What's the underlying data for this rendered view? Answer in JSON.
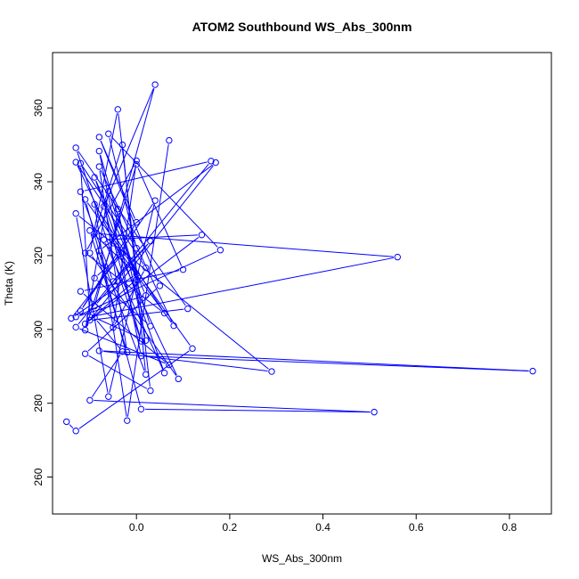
{
  "chart_data": {
    "type": "line",
    "title": "ATOM2 Southbound WS_Abs_300nm",
    "xlabel": "WS_Abs_300nm",
    "ylabel": "Theta (K)",
    "xlim": [
      -0.18,
      0.89
    ],
    "ylim": [
      250,
      375
    ],
    "xticks": [
      0.0,
      0.2,
      0.4,
      0.6,
      0.8
    ],
    "xtick_labels": [
      "0.0",
      "0.2",
      "0.4",
      "0.6",
      "0.8"
    ],
    "yticks": [
      260,
      280,
      300,
      320,
      340,
      360
    ],
    "ytick_labels": [
      "260",
      "280",
      "300",
      "320",
      "340",
      "360"
    ],
    "grid": false,
    "series": [
      {
        "color": "#0000ff",
        "markers": "open-circle",
        "points": [
          [
            -0.15,
            275.0
          ],
          [
            -0.13,
            272.5
          ],
          [
            0.12,
            294.8
          ],
          [
            -0.11,
            335.2
          ],
          [
            0.01,
            278.4
          ],
          [
            0.51,
            277.6
          ],
          [
            -0.1,
            280.8
          ],
          [
            -0.03,
            294.0
          ],
          [
            -0.09,
            303.2
          ],
          [
            0.02,
            297.0
          ],
          [
            -0.04,
            332.6
          ],
          [
            -0.05,
            323.4
          ],
          [
            0.08,
            301.0
          ],
          [
            -0.08,
            344.1
          ],
          [
            -0.02,
            293.8
          ],
          [
            -0.1,
            326.8
          ],
          [
            0.0,
            315.0
          ],
          [
            -0.14,
            303.0
          ],
          [
            -0.03,
            320.6
          ],
          [
            -0.09,
            313.9
          ],
          [
            0.03,
            300.9
          ],
          [
            -0.06,
            337.4
          ],
          [
            -0.11,
            299.8
          ],
          [
            0.0,
            344.7
          ],
          [
            0.1,
            316.2
          ],
          [
            -0.12,
            310.3
          ],
          [
            0.07,
            290.4
          ],
          [
            -0.13,
            300.6
          ],
          [
            0.16,
            345.6
          ],
          [
            -0.12,
            337.3
          ],
          [
            -0.05,
            313.0
          ],
          [
            0.03,
            323.9
          ],
          [
            -0.09,
            306.3
          ],
          [
            0.04,
            366.3
          ],
          [
            -0.07,
            333.3
          ],
          [
            0.01,
            296.8
          ],
          [
            -0.13,
            349.2
          ],
          [
            0.11,
            305.6
          ],
          [
            -0.1,
            302.5
          ],
          [
            0.17,
            345.2
          ],
          [
            -0.08,
            321.3
          ],
          [
            0.02,
            287.8
          ],
          [
            -0.03,
            350.0
          ],
          [
            -0.09,
            326.0
          ],
          [
            0.56,
            319.6
          ],
          [
            -0.1,
            303.4
          ],
          [
            -0.12,
            345.0
          ],
          [
            0.0,
            322.0
          ],
          [
            -0.06,
            353.0
          ],
          [
            0.18,
            321.5
          ],
          [
            -0.13,
            303.4
          ],
          [
            0.02,
            309.2
          ],
          [
            -0.09,
            341.2
          ],
          [
            0.06,
            288.2
          ],
          [
            -0.07,
            324.3
          ],
          [
            0.14,
            325.6
          ],
          [
            -0.11,
            301.5
          ],
          [
            0.0,
            313.5
          ],
          [
            -0.08,
            348.3
          ],
          [
            0.01,
            292.8
          ],
          [
            0.85,
            288.7
          ],
          [
            -0.08,
            294.2
          ],
          [
            0.29,
            288.6
          ],
          [
            -0.13,
            331.4
          ],
          [
            -0.06,
            281.8
          ],
          [
            0.04,
            334.9
          ],
          [
            -0.12,
            305.0
          ],
          [
            0.0,
            329.0
          ],
          [
            -0.08,
            352.1
          ],
          [
            0.05,
            311.8
          ],
          [
            -0.11,
            293.4
          ],
          [
            0.03,
            283.4
          ],
          [
            -0.04,
            359.6
          ],
          [
            -0.1,
            320.7
          ],
          [
            0.09,
            286.6
          ],
          [
            -0.13,
            345.3
          ],
          [
            0.02,
            316.7
          ],
          [
            -0.05,
            300.5
          ],
          [
            0.0,
            345.7
          ],
          [
            -0.11,
            320.7
          ],
          [
            0.06,
            304.4
          ],
          [
            -0.09,
            333.9
          ],
          [
            -0.02,
            275.3
          ],
          [
            0.07,
            351.2
          ]
        ]
      }
    ]
  }
}
